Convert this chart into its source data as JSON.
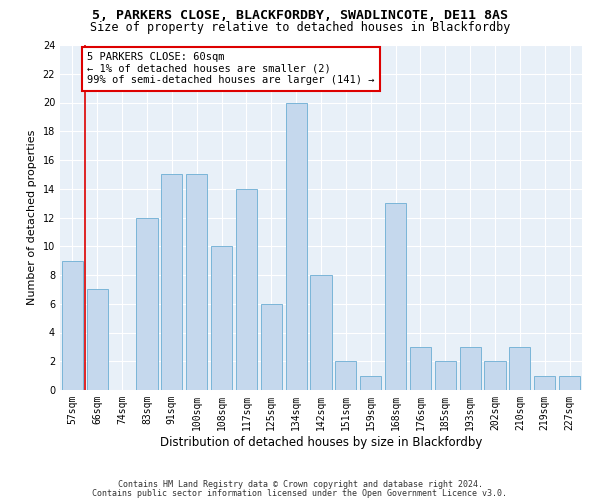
{
  "title1": "5, PARKERS CLOSE, BLACKFORDBY, SWADLINCOTE, DE11 8AS",
  "title2": "Size of property relative to detached houses in Blackfordby",
  "xlabel": "Distribution of detached houses by size in Blackfordby",
  "ylabel": "Number of detached properties",
  "categories": [
    "57sqm",
    "66sqm",
    "74sqm",
    "83sqm",
    "91sqm",
    "100sqm",
    "108sqm",
    "117sqm",
    "125sqm",
    "134sqm",
    "142sqm",
    "151sqm",
    "159sqm",
    "168sqm",
    "176sqm",
    "185sqm",
    "193sqm",
    "202sqm",
    "210sqm",
    "219sqm",
    "227sqm"
  ],
  "values": [
    9,
    7,
    0,
    12,
    15,
    15,
    10,
    14,
    6,
    20,
    8,
    2,
    1,
    13,
    3,
    2,
    3,
    2,
    3,
    1,
    1
  ],
  "bar_color": "#c5d8ed",
  "bar_edge_color": "#7ab5d8",
  "highlight_color": "#dd0000",
  "annotation_text": "5 PARKERS CLOSE: 60sqm\n← 1% of detached houses are smaller (2)\n99% of semi-detached houses are larger (141) →",
  "annotation_box_color": "#ffffff",
  "annotation_box_edge": "#dd0000",
  "ylim": [
    0,
    24
  ],
  "yticks": [
    0,
    2,
    4,
    6,
    8,
    10,
    12,
    14,
    16,
    18,
    20,
    22,
    24
  ],
  "footer1": "Contains HM Land Registry data © Crown copyright and database right 2024.",
  "footer2": "Contains public sector information licensed under the Open Government Licence v3.0.",
  "bg_color": "#e8f0f8",
  "grid_color": "#ffffff",
  "title_fontsize": 9.5,
  "subtitle_fontsize": 8.5,
  "tick_fontsize": 7,
  "ylabel_fontsize": 8,
  "xlabel_fontsize": 8.5,
  "annotation_fontsize": 7.5,
  "footer_fontsize": 6
}
